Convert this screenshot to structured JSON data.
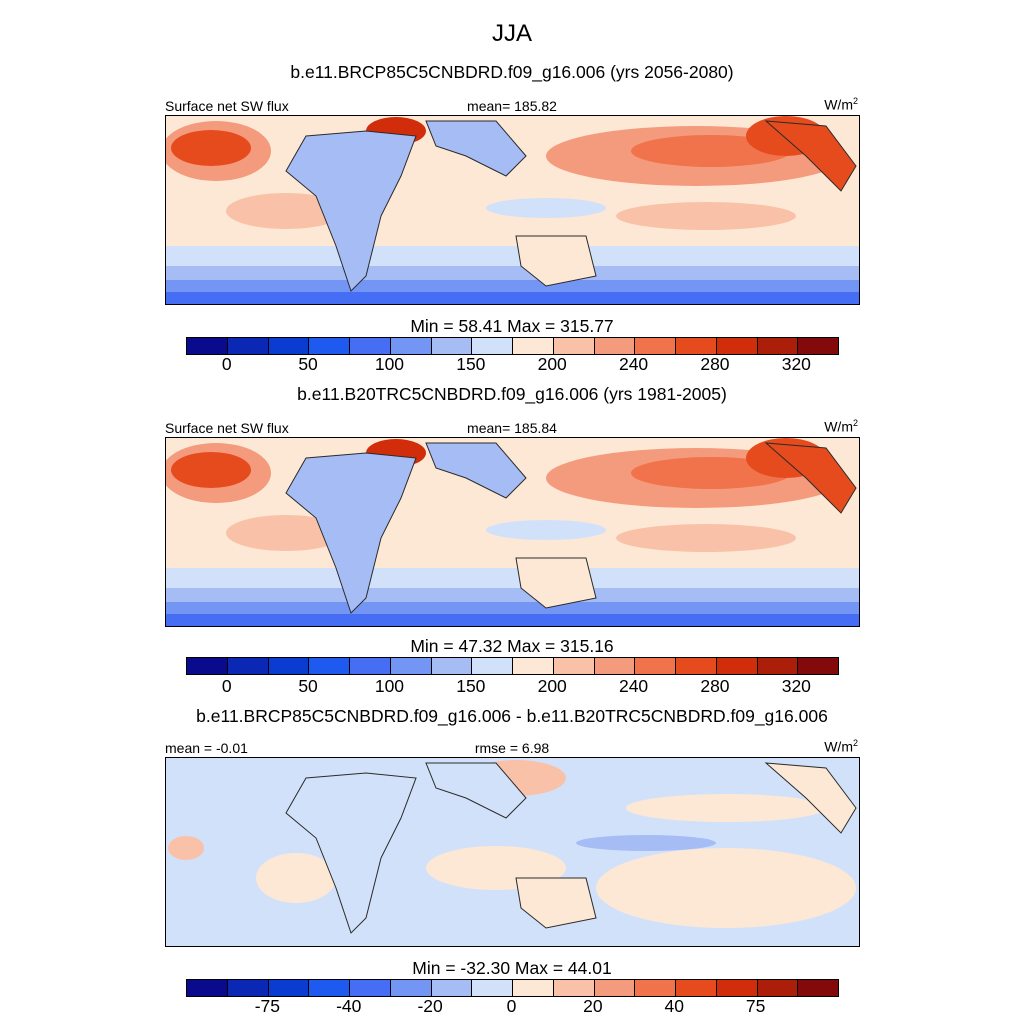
{
  "title": "JJA",
  "colors": {
    "palette": [
      "#0a0a8c",
      "#0a28b4",
      "#0a3cd2",
      "#1e5af0",
      "#466ef5",
      "#7396f5",
      "#a5bcf5",
      "#d2e1fa",
      "#fde8d6",
      "#f9c2a8",
      "#f59b7d",
      "#f0734b",
      "#e64b1e",
      "#d22d0a",
      "#aa1e0a",
      "#820a0a"
    ],
    "land_outline": "#2a2a2a"
  },
  "chart_data": [
    {
      "type": "heatmap",
      "title": "b.e11.BRCP85C5CNBDRD.f09_g16.006 (yrs 2056-2080)",
      "left_label": "Surface net SW flux",
      "center_label": "mean= 185.82",
      "units": "W/m",
      "units_sup": "2",
      "min": 58.41,
      "max": 315.77,
      "minmax_text": "Min =  58.41 Max = 315.77",
      "colorbar_ticks": [
        "0",
        "50",
        "100",
        "150",
        "200",
        "240",
        "280",
        "320"
      ],
      "levels": [
        0,
        25,
        50,
        75,
        100,
        125,
        150,
        175,
        200,
        220,
        240,
        260,
        280,
        300,
        320
      ],
      "mean": 185.82
    },
    {
      "type": "heatmap",
      "title": "b.e11.B20TRC5CNBDRD.f09_g16.006 (yrs 1981-2005)",
      "left_label": "Surface net SW flux",
      "center_label": "mean= 185.84",
      "units": "W/m",
      "units_sup": "2",
      "min": 47.32,
      "max": 315.16,
      "minmax_text": "Min =  47.32 Max = 315.16",
      "colorbar_ticks": [
        "0",
        "50",
        "100",
        "150",
        "200",
        "240",
        "280",
        "320"
      ],
      "levels": [
        0,
        25,
        50,
        75,
        100,
        125,
        150,
        175,
        200,
        220,
        240,
        260,
        280,
        300,
        320
      ],
      "mean": 185.84
    },
    {
      "type": "heatmap",
      "title": "b.e11.BRCP85C5CNBDRD.f09_g16.006 - b.e11.B20TRC5CNBDRD.f09_g16.006",
      "left_label": "mean =  -0.01",
      "center_label": "rmse =   6.98",
      "units": "W/m",
      "units_sup": "2",
      "min": -32.3,
      "max": 44.01,
      "minmax_text": "Min = -32.30 Max =  44.01",
      "colorbar_ticks": [
        "-75",
        "-40",
        "-20",
        "0",
        "20",
        "40",
        "75"
      ],
      "levels": [
        -100,
        -75,
        -50,
        -40,
        -30,
        -20,
        -10,
        0,
        10,
        20,
        30,
        40,
        50,
        75,
        100
      ],
      "mean": -0.01,
      "rmse": 6.98
    }
  ]
}
